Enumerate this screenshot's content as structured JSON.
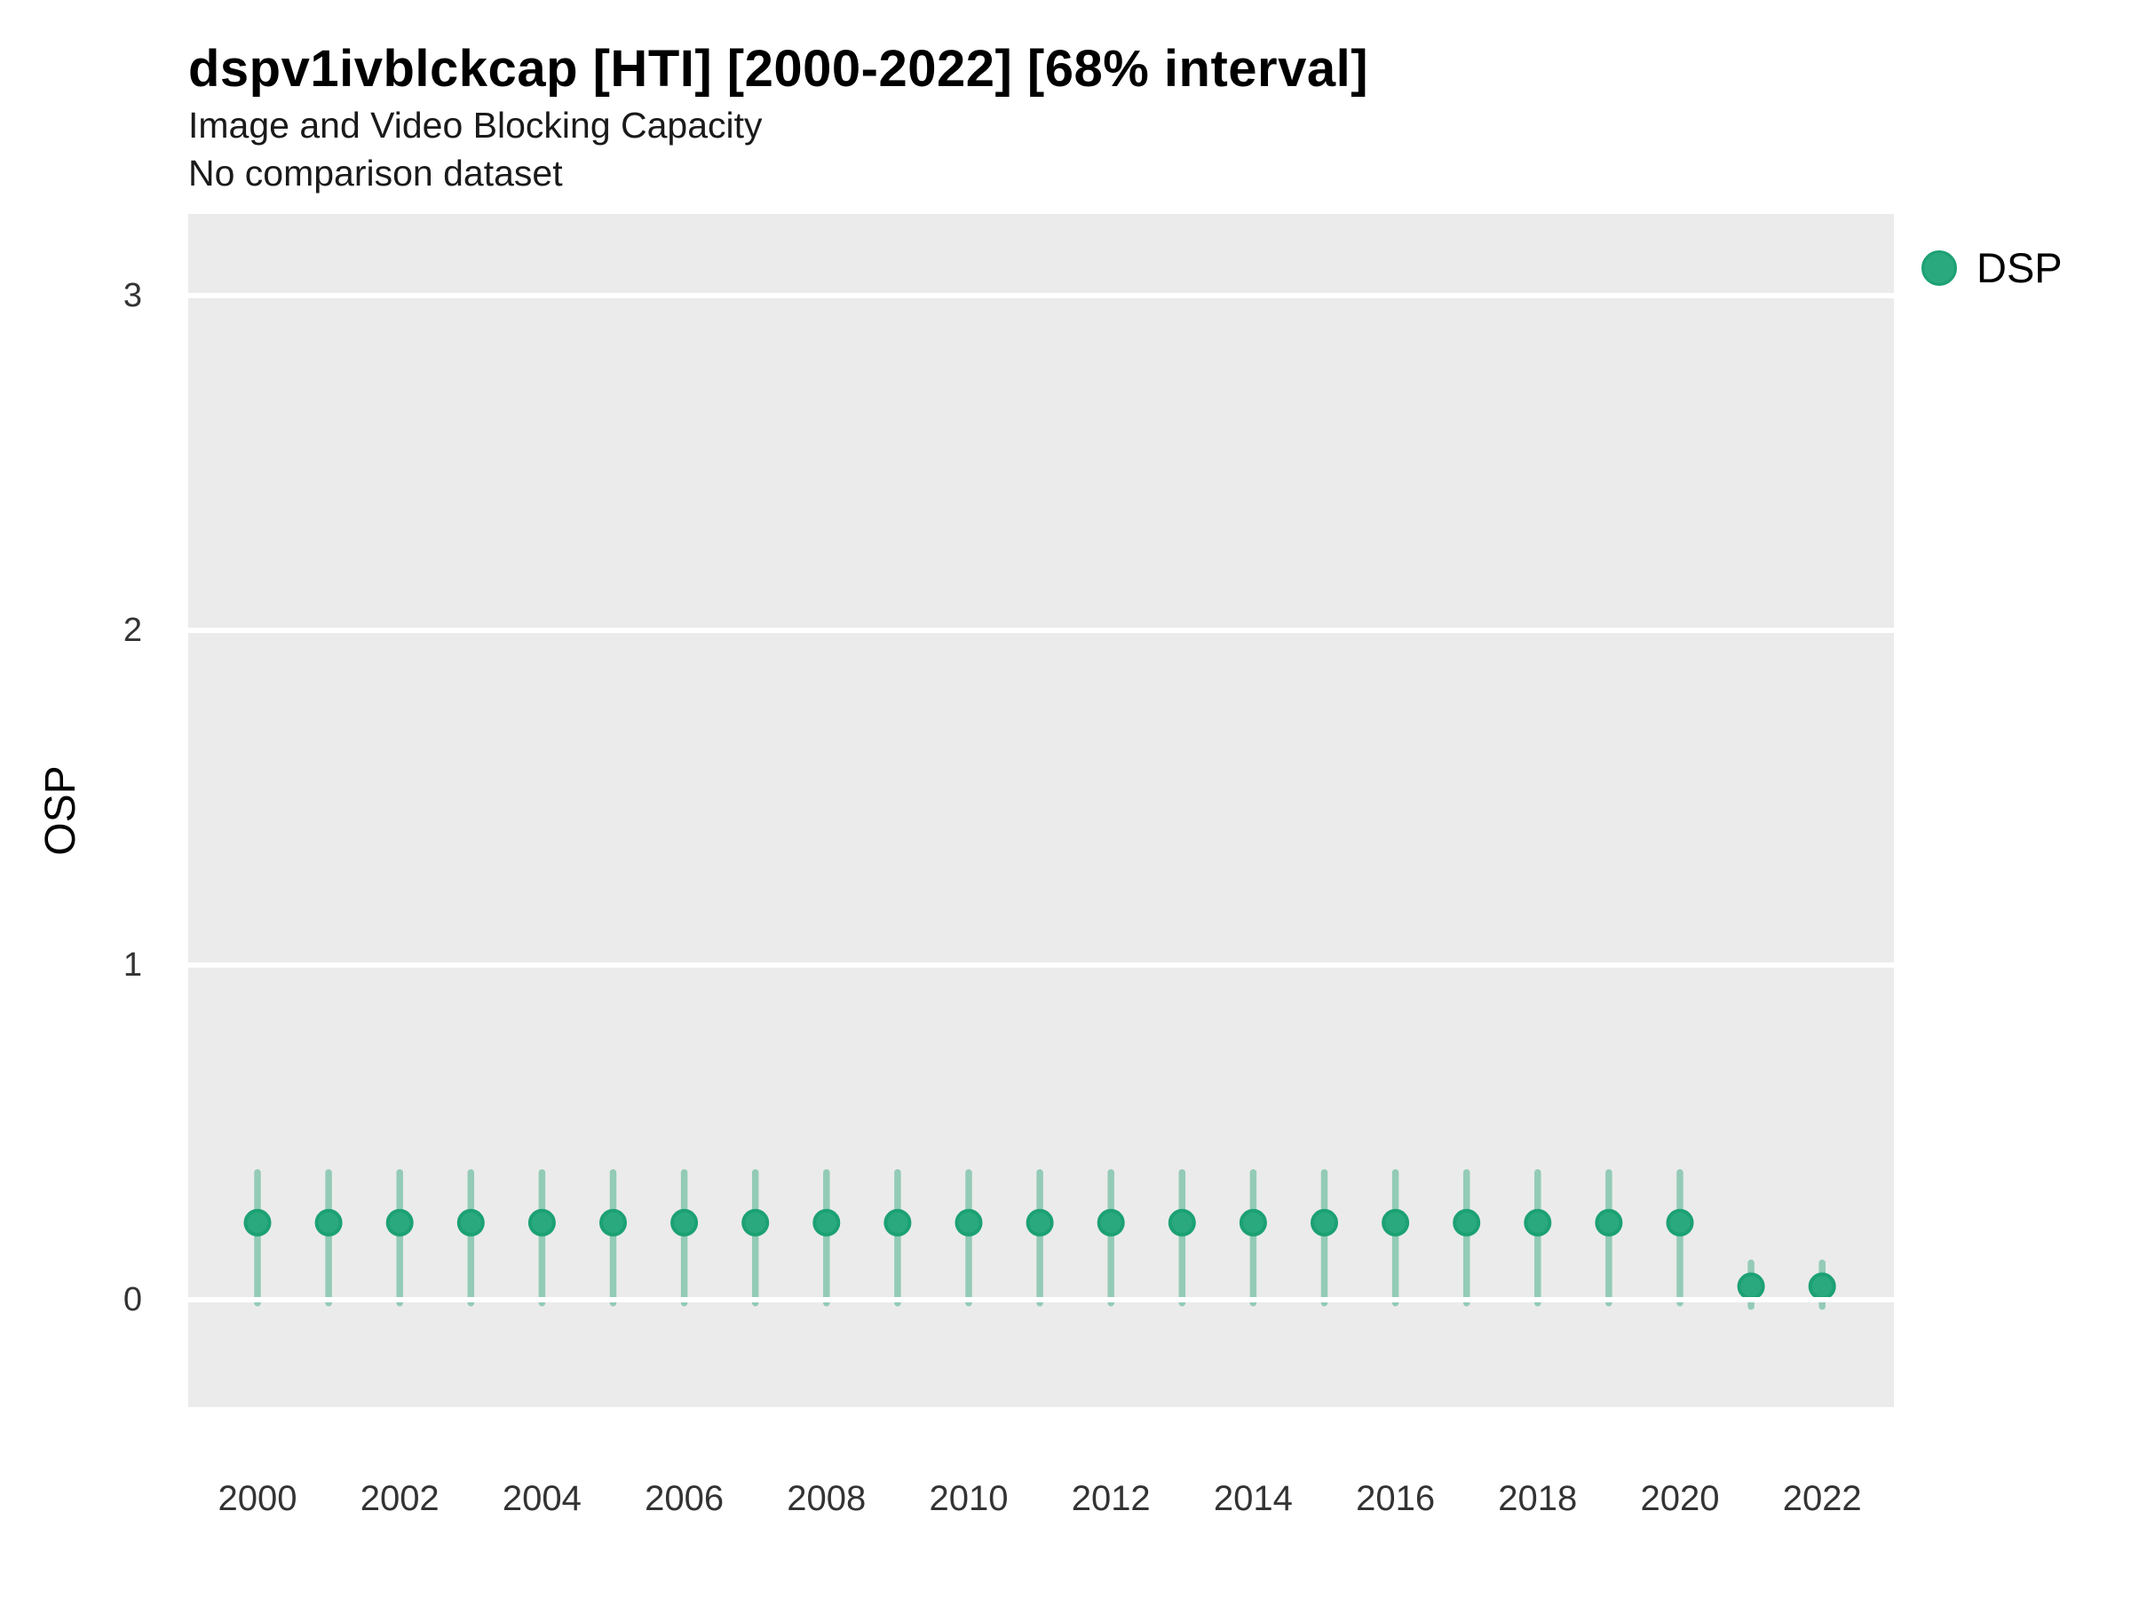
{
  "chart_data": {
    "type": "scatter",
    "variant": "pointrange-interval",
    "title": "dspv1ivblckcap [HTI] [2000-2022] [68% interval]",
    "subtitle": "Image and Video Blocking Capacity",
    "note": "No comparison dataset",
    "xlabel": "",
    "ylabel": "OSP",
    "interval_level": "68%",
    "x": [
      2000,
      2001,
      2002,
      2003,
      2004,
      2005,
      2006,
      2007,
      2008,
      2009,
      2010,
      2011,
      2012,
      2013,
      2014,
      2015,
      2016,
      2017,
      2018,
      2019,
      2020,
      2021,
      2022
    ],
    "series": [
      {
        "name": "DSP",
        "values": [
          0.23,
          0.23,
          0.23,
          0.23,
          0.23,
          0.23,
          0.23,
          0.23,
          0.23,
          0.23,
          0.23,
          0.23,
          0.23,
          0.23,
          0.23,
          0.23,
          0.23,
          0.23,
          0.23,
          0.23,
          0.23,
          0.04,
          0.04
        ],
        "lower": [
          -0.01,
          -0.01,
          -0.01,
          -0.01,
          -0.01,
          -0.01,
          -0.01,
          -0.01,
          -0.01,
          -0.01,
          -0.01,
          -0.01,
          -0.01,
          -0.01,
          -0.01,
          -0.01,
          -0.01,
          -0.01,
          -0.01,
          -0.01,
          -0.01,
          -0.02,
          -0.02
        ],
        "upper": [
          0.38,
          0.38,
          0.38,
          0.38,
          0.38,
          0.38,
          0.38,
          0.38,
          0.38,
          0.38,
          0.38,
          0.38,
          0.38,
          0.38,
          0.38,
          0.38,
          0.38,
          0.38,
          0.38,
          0.38,
          0.38,
          0.11,
          0.11
        ]
      }
    ],
    "xticks": [
      2000,
      2002,
      2004,
      2006,
      2008,
      2010,
      2012,
      2014,
      2016,
      2018,
      2020,
      2022
    ],
    "yticks": [
      0,
      1,
      2,
      3
    ],
    "ylim": [
      -0.32,
      3.24
    ],
    "grid": "major-horizontal-only",
    "legend": {
      "position": "right",
      "entries": [
        {
          "label": "DSP",
          "color": "#2BA97E"
        }
      ]
    },
    "colors": {
      "point_fill": "#2BA97E",
      "point_stroke": "#1CA173",
      "interval_bar": "#93CBB6",
      "panel_background": "#EBEBEB",
      "gridline": "#FFFFFF",
      "title_text": "#000000",
      "tick_text": "#333333"
    }
  }
}
